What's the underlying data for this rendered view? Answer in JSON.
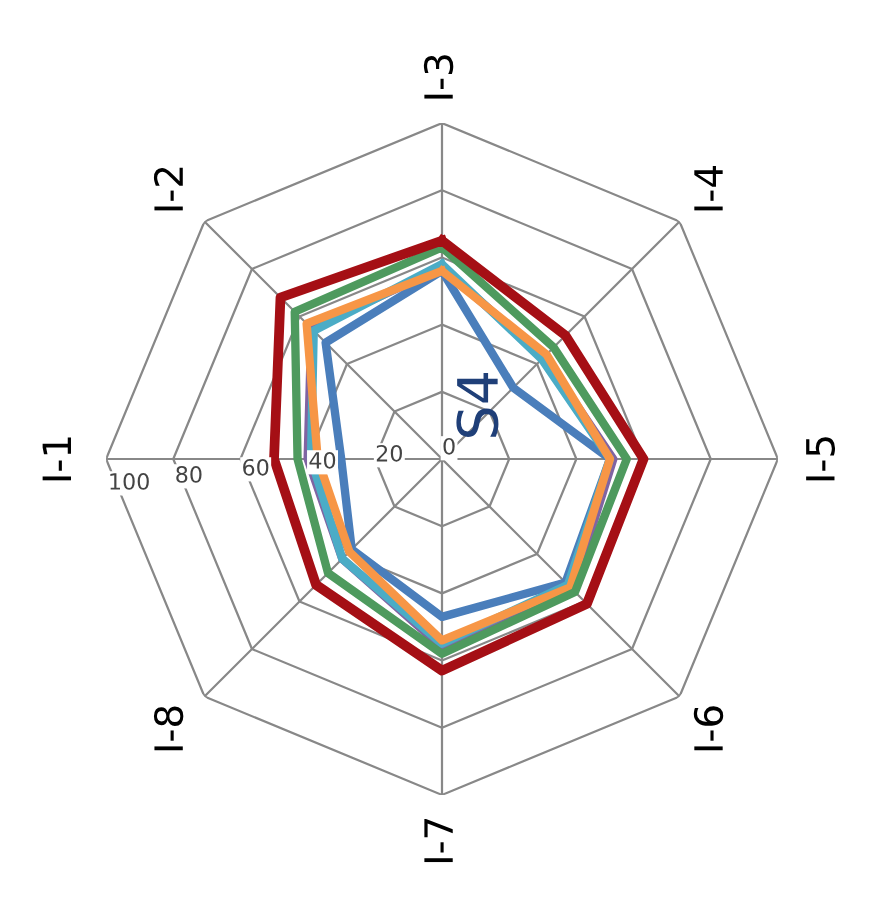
{
  "chart_data": {
    "type": "radar",
    "categories": [
      "I-3",
      "I-4",
      "I-5",
      "I-6",
      "I-7",
      "I-8",
      "I-1",
      "I-2"
    ],
    "ylim": [
      0,
      100
    ],
    "yticks": [
      0,
      20,
      40,
      60,
      80,
      100
    ],
    "grid": true,
    "marker": "none",
    "line_style": "solid",
    "annotations": [
      "S4"
    ],
    "series": [
      {
        "color": "#4a7ebb",
        "values": [
          56,
          30,
          50,
          52,
          47,
          38,
          30,
          49
        ]
      },
      {
        "color": "#8064a2",
        "values": [
          57,
          43,
          51,
          55,
          56,
          42,
          40,
          55
        ]
      },
      {
        "color": "#4bacc6",
        "values": [
          58,
          42,
          50,
          53,
          55,
          42,
          39,
          54
        ]
      },
      {
        "color": "#f79646",
        "values": [
          56,
          44,
          50,
          54,
          54,
          39,
          37,
          57
        ]
      },
      {
        "color": "#4e9a5e",
        "values": [
          63,
          47,
          55,
          56,
          58,
          48,
          43,
          62
        ]
      },
      {
        "color": "#a50f15",
        "values": [
          65,
          52,
          60,
          61,
          63,
          53,
          50,
          68
        ]
      }
    ]
  }
}
